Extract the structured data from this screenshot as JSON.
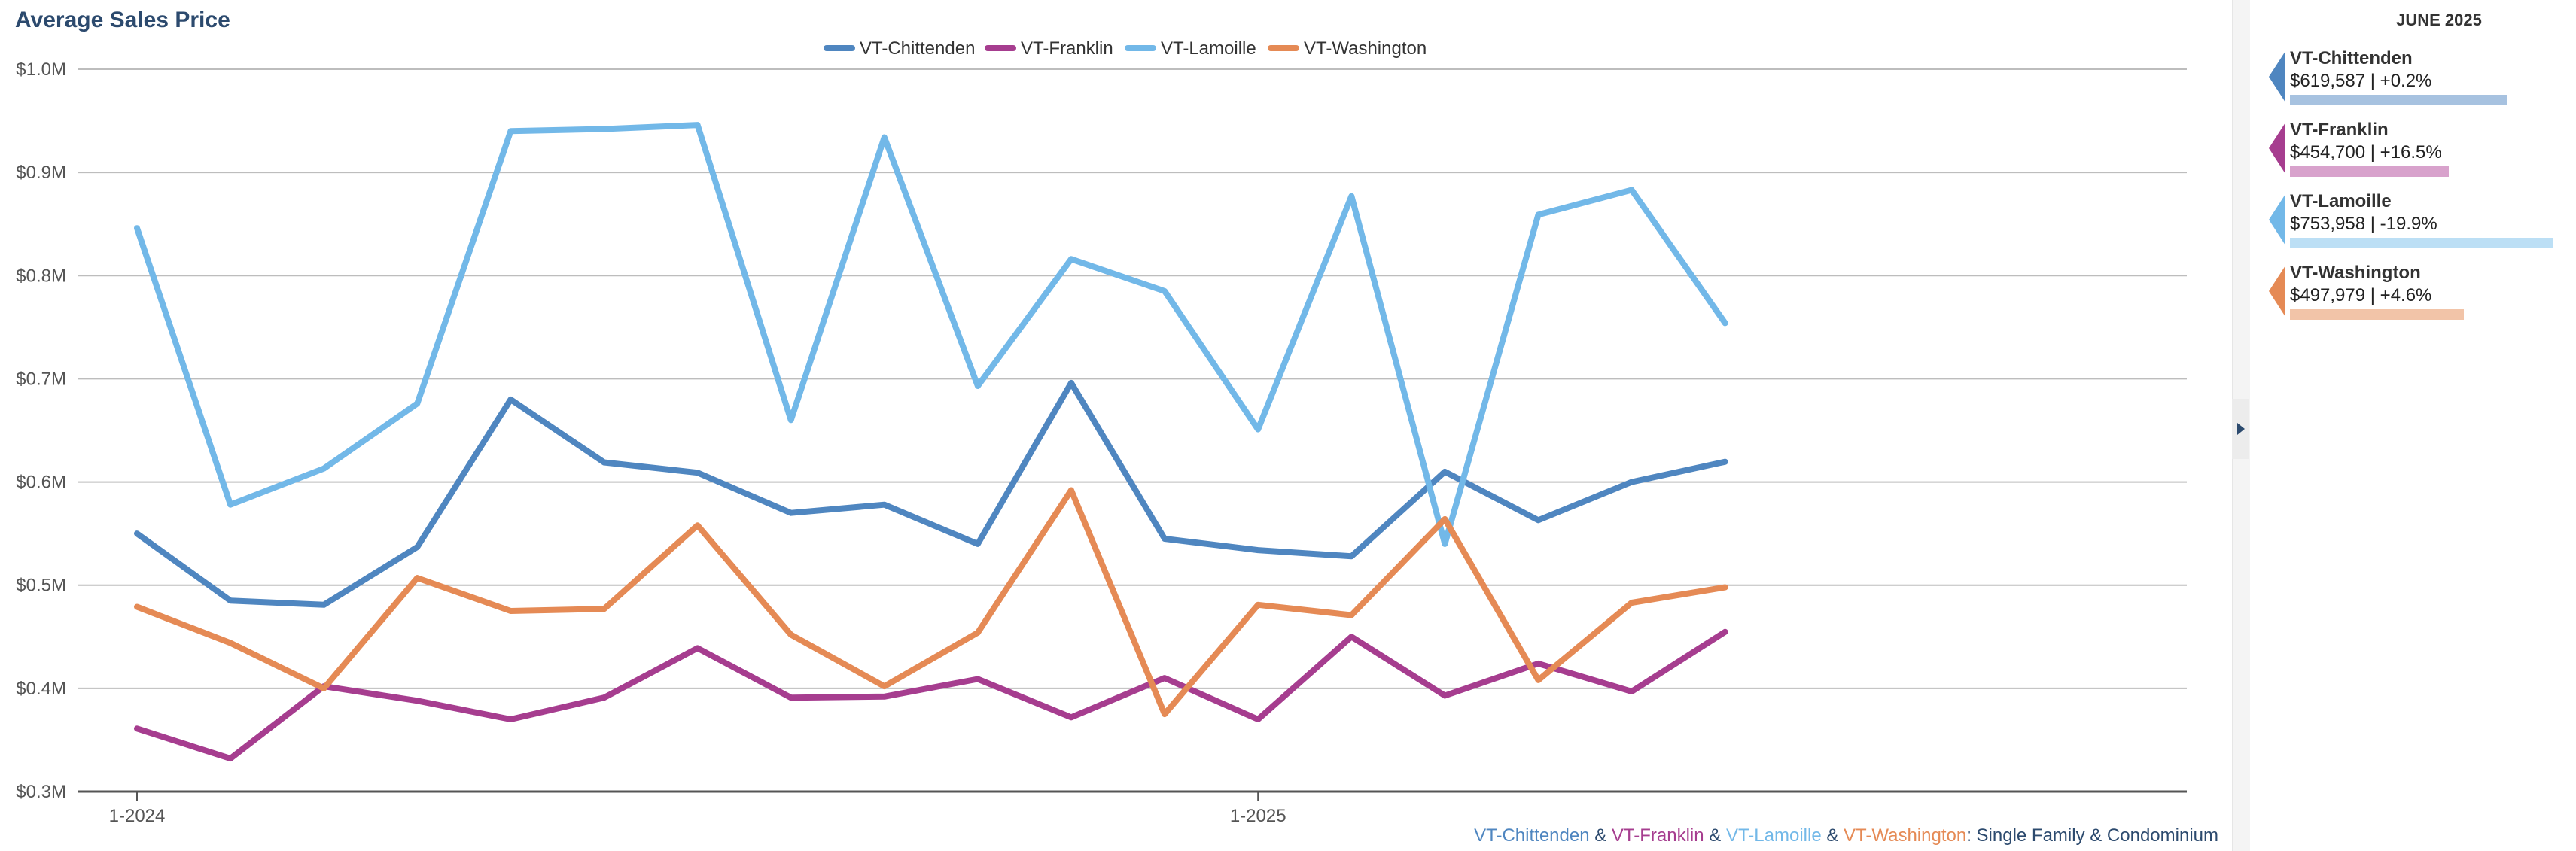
{
  "chart_data": {
    "type": "line",
    "title": "Average Sales Price",
    "y_tick_labels": [
      "$0.3M",
      "$0.4M",
      "$0.5M",
      "$0.6M",
      "$0.7M",
      "$0.8M",
      "$0.9M",
      "$1.0M"
    ],
    "x_tick_labels": [
      {
        "label": "1-2024",
        "index": 0
      },
      {
        "label": "1-2025",
        "index": 12
      }
    ],
    "ylim": [
      300000,
      1000000
    ],
    "grid": true,
    "legend_position": "top-center",
    "x": [
      "1-2024",
      "2-2024",
      "3-2024",
      "4-2024",
      "5-2024",
      "6-2024",
      "7-2024",
      "8-2024",
      "9-2024",
      "10-2024",
      "11-2024",
      "12-2024",
      "1-2025",
      "2-2025",
      "3-2025",
      "4-2025",
      "5-2025",
      "6-2025"
    ],
    "series": [
      {
        "name": "VT-Chittenden",
        "color": "#4f86c0",
        "values": [
          550000,
          485000,
          481000,
          537000,
          680000,
          619000,
          609000,
          570000,
          578000,
          540000,
          696000,
          545000,
          534000,
          528000,
          610000,
          563000,
          600000,
          619587
        ]
      },
      {
        "name": "VT-Franklin",
        "color": "#a63d8f",
        "values": [
          361000,
          332000,
          402000,
          388000,
          370000,
          391000,
          439000,
          391000,
          392000,
          409000,
          372000,
          410000,
          370000,
          450000,
          393000,
          424000,
          397000,
          454700
        ]
      },
      {
        "name": "VT-Lamoille",
        "color": "#72b8e8",
        "values": [
          846000,
          578000,
          613000,
          676000,
          940000,
          942000,
          946000,
          660000,
          934000,
          693000,
          816000,
          785000,
          651000,
          877000,
          540000,
          859000,
          883000,
          753958
        ]
      },
      {
        "name": "VT-Washington",
        "color": "#e58a55",
        "values": [
          479000,
          444000,
          400000,
          507000,
          475000,
          477000,
          558000,
          452000,
          402000,
          454000,
          592000,
          375000,
          481000,
          471000,
          564000,
          408000,
          483000,
          497979
        ]
      }
    ]
  },
  "footer": {
    "parts": [
      {
        "text": "VT-Chittenden",
        "color": "#4f86c0"
      },
      {
        "text": " & ",
        "color": "#2c4a6e"
      },
      {
        "text": "VT-Franklin",
        "color": "#a63d8f"
      },
      {
        "text": " & ",
        "color": "#2c4a6e"
      },
      {
        "text": "VT-Lamoille",
        "color": "#72b8e8"
      },
      {
        "text": " & ",
        "color": "#2c4a6e"
      },
      {
        "text": "VT-Washington",
        "color": "#e58a55"
      },
      {
        "text": ": Single Family & Condominium",
        "color": "#2c4a6e"
      }
    ]
  },
  "panel": {
    "header": "JUNE 2025",
    "cards": [
      {
        "name": "VT-Chittenden",
        "value_text": "$619,587 | +0.2%",
        "color": "#4f86c0",
        "bar_color": "#a7c2e0",
        "value": 619587
      },
      {
        "name": "VT-Franklin",
        "value_text": "$454,700 | +16.5%",
        "color": "#a63d8f",
        "bar_color": "#d8a2cc",
        "value": 454700
      },
      {
        "name": "VT-Lamoille",
        "value_text": "$753,958 | -19.9%",
        "color": "#72b8e8",
        "bar_color": "#bcdff5",
        "value": 753958
      },
      {
        "name": "VT-Washington",
        "value_text": "$497,979 | +4.6%",
        "color": "#e58a55",
        "bar_color": "#f2c4a8",
        "value": 497979
      }
    ]
  }
}
